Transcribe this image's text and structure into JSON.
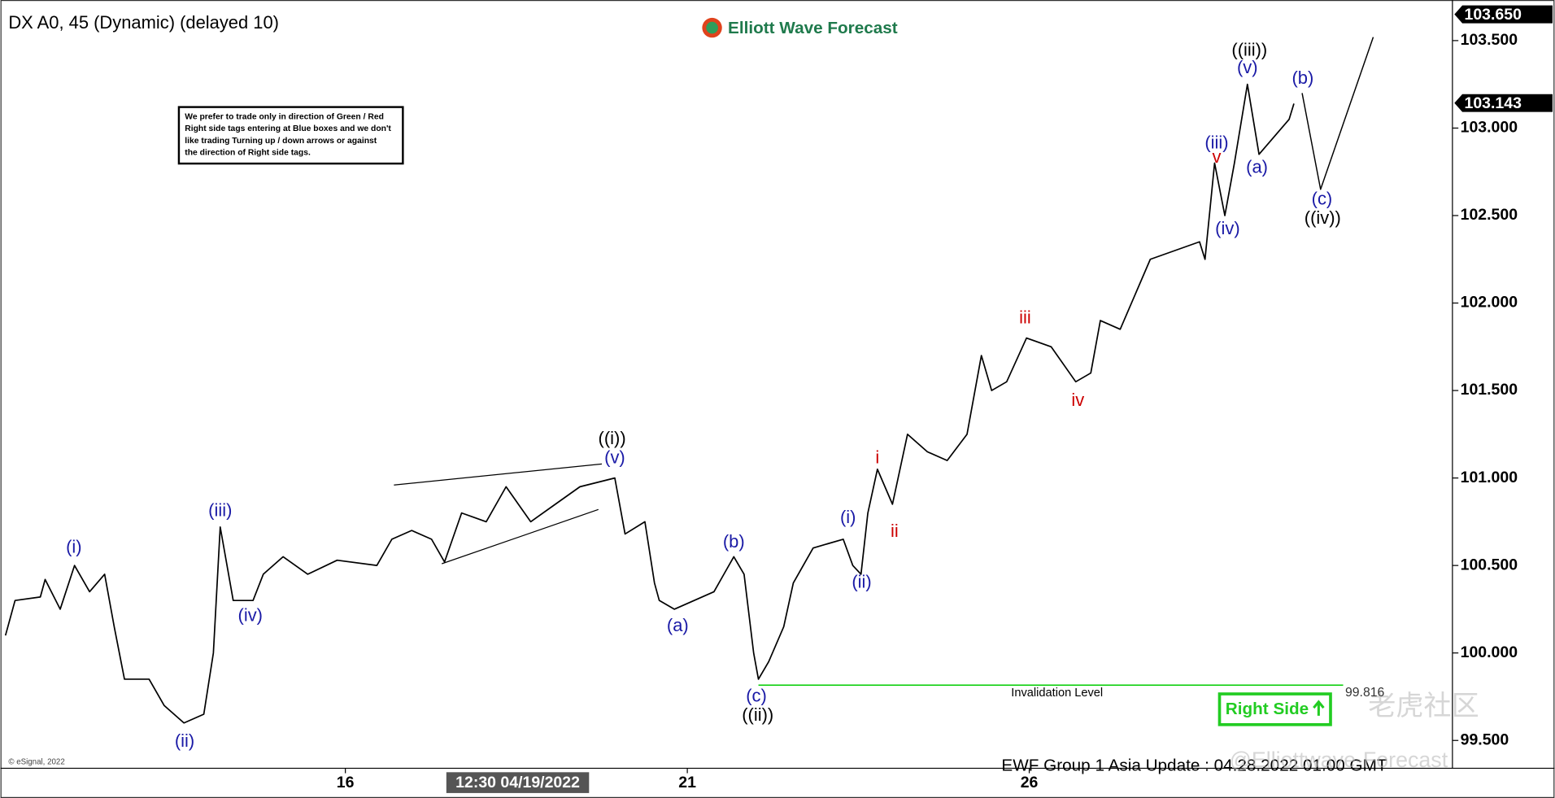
{
  "chart_data": {
    "type": "line",
    "title": "DX A0, 45 (Dynamic) (delayed 10)",
    "logo": "Elliott Wave Forecast",
    "note": [
      "We prefer to trade only in direction of Green / Red",
      "Right side tags entering at Blue boxes and we don't",
      "like trading Turning up / down arrows or against",
      "the direction of Right side tags."
    ],
    "color": "#000000",
    "x": [
      11.03,
      11.17,
      11.54,
      11.61,
      11.83,
      12.04,
      12.26,
      12.48,
      12.62,
      12.77,
      13.13,
      13.35,
      13.64,
      13.93,
      14.07,
      14.17,
      14.36,
      14.65,
      14.8,
      15.09,
      15.45,
      15.88,
      16.46,
      16.68,
      16.97,
      17.26,
      17.45,
      17.7,
      18.06,
      18.35,
      18.71,
      19.07,
      19.43,
      19.94,
      20.09,
      20.38,
      20.52,
      20.59,
      20.81,
      21.1,
      21.39,
      21.68,
      21.83,
      21.97,
      22.04,
      22.19,
      22.41,
      22.55,
      22.84,
      23.28,
      23.42,
      23.54,
      23.64,
      23.78,
      24.0,
      24.22,
      24.51,
      24.8,
      25.09,
      25.3,
      25.45,
      25.67,
      25.96,
      26.32,
      26.68,
      26.9,
      27.04,
      27.33,
      27.55,
      27.77,
      28.13,
      28.49,
      28.57,
      28.71,
      28.86,
      29.0,
      29.19,
      29.36,
      29.58,
      29.8,
      29.87
    ],
    "values": [
      100.1,
      100.3,
      100.32,
      100.42,
      100.25,
      100.5,
      100.35,
      100.45,
      100.15,
      99.85,
      99.85,
      99.7,
      99.6,
      99.65,
      100.0,
      100.72,
      100.3,
      100.3,
      100.45,
      100.55,
      100.45,
      100.53,
      100.5,
      100.65,
      100.7,
      100.65,
      100.52,
      100.8,
      100.75,
      100.95,
      100.75,
      100.85,
      100.95,
      101.0,
      100.68,
      100.75,
      100.4,
      100.3,
      100.25,
      100.3,
      100.35,
      100.55,
      100.45,
      100.0,
      99.85,
      99.95,
      100.15,
      100.4,
      100.6,
      100.65,
      100.5,
      100.45,
      100.8,
      101.05,
      100.85,
      101.25,
      101.15,
      101.1,
      101.25,
      101.7,
      101.5,
      101.55,
      101.8,
      101.75,
      101.55,
      101.6,
      101.9,
      101.85,
      102.05,
      102.25,
      102.3,
      102.35,
      102.25,
      102.8,
      102.5,
      102.8,
      103.25,
      102.85,
      102.95,
      103.05,
      103.14
    ],
    "xlim": [
      10.957,
      32.188
    ],
    "ylim": [
      99.341,
      103.732
    ],
    "xticks": [
      {
        "value": 16,
        "label": "16"
      },
      {
        "value": 21,
        "label": "21"
      },
      {
        "value": 26,
        "label": "26"
      }
    ],
    "yticks": [
      {
        "value": 99.5,
        "label": "99.500"
      },
      {
        "value": 100,
        "label": "100.000"
      },
      {
        "value": 100.5,
        "label": "100.500"
      },
      {
        "value": 101,
        "label": "101.000"
      },
      {
        "value": 101.5,
        "label": "101.500"
      },
      {
        "value": 102,
        "label": "102.000"
      },
      {
        "value": 102.5,
        "label": "102.500"
      },
      {
        "value": 103,
        "label": "103.000"
      },
      {
        "value": 103.5,
        "label": "103.500"
      }
    ],
    "crosshair": {
      "x": 18.52,
      "label": "12:30 04/19/2022"
    },
    "axis_max": {
      "value": 103.65,
      "label": "103.650"
    },
    "last_price": 103.143,
    "triangle": [
      {
        "x": [
          16.71,
          19.75
        ],
        "values": [
          100.96,
          101.08
        ]
      },
      {
        "x": [
          17.41,
          19.7
        ],
        "values": [
          100.51,
          100.82
        ]
      }
    ],
    "projection": {
      "x": [
        29.99,
        30.26,
        31.03
      ],
      "values": [
        103.2,
        102.65,
        103.52
      ]
    },
    "invalidation": {
      "x": [
        22.04,
        30.59
      ],
      "value": 99.816,
      "label": "Invalidation Level",
      "color": "#00cc00"
    },
    "wave_labels": [
      {
        "text": "(i)",
        "x": 12.03,
        "y": 100.6,
        "color": "#1a1aa6"
      },
      {
        "text": "(ii)",
        "x": 13.65,
        "y": 99.49,
        "color": "#1a1aa6"
      },
      {
        "text": "(iii)",
        "x": 14.17,
        "y": 100.81,
        "color": "#1a1aa6"
      },
      {
        "text": "(iv)",
        "x": 14.61,
        "y": 100.21,
        "color": "#1a1aa6"
      },
      {
        "text": "((i))",
        "x": 19.9,
        "y": 101.22,
        "color": "#000000"
      },
      {
        "text": "(v)",
        "x": 19.94,
        "y": 101.11,
        "color": "#1a1aa6"
      },
      {
        "text": "(a)",
        "x": 20.86,
        "y": 100.15,
        "color": "#1a1aa6"
      },
      {
        "text": "(b)",
        "x": 21.68,
        "y": 100.63,
        "color": "#1a1aa6"
      },
      {
        "text": "(c)",
        "x": 22.01,
        "y": 99.75,
        "color": "#1a1aa6"
      },
      {
        "text": "((ii))",
        "x": 22.03,
        "y": 99.64,
        "color": "#000000"
      },
      {
        "text": "(i)",
        "x": 23.35,
        "y": 100.77,
        "color": "#1a1aa6"
      },
      {
        "text": "(ii)",
        "x": 23.55,
        "y": 100.4,
        "color": "#1a1aa6"
      },
      {
        "text": "i",
        "x": 23.78,
        "y": 101.11,
        "color": "#cc0000"
      },
      {
        "text": "ii",
        "x": 24.03,
        "y": 100.69,
        "color": "#cc0000"
      },
      {
        "text": "iii",
        "x": 25.94,
        "y": 101.91,
        "color": "#cc0000"
      },
      {
        "text": "iv",
        "x": 26.71,
        "y": 101.44,
        "color": "#cc0000"
      },
      {
        "text": "(iii)",
        "x": 28.74,
        "y": 102.91,
        "color": "#1a1aa6"
      },
      {
        "text": "v",
        "x": 28.74,
        "y": 102.83,
        "color": "#cc0000"
      },
      {
        "text": "(iv)",
        "x": 28.9,
        "y": 102.42,
        "color": "#1a1aa6"
      },
      {
        "text": "((iii))",
        "x": 29.22,
        "y": 103.44,
        "color": "#000000"
      },
      {
        "text": "(v)",
        "x": 29.19,
        "y": 103.34,
        "color": "#1a1aa6"
      },
      {
        "text": "(a)",
        "x": 29.33,
        "y": 102.77,
        "color": "#1a1aa6"
      },
      {
        "text": "(b)",
        "x": 30.0,
        "y": 103.28,
        "color": "#1a1aa6"
      },
      {
        "text": "(c)",
        "x": 30.28,
        "y": 102.59,
        "color": "#1a1aa6"
      },
      {
        "text": "((iv))",
        "x": 30.29,
        "y": 102.48,
        "color": "#000000"
      }
    ],
    "right_side_tag": "Right Side",
    "footer": "EWF Group 1 Asia Update : 04.28.2022 01.00 GMT",
    "copyright": "© eSignal, 2022",
    "watermark": [
      "老虎社区",
      "@Elliottwave-Forecast"
    ]
  }
}
